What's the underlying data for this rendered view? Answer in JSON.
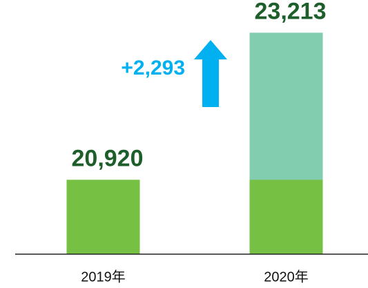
{
  "chart_data": {
    "type": "bar",
    "categories": [
      "2019年",
      "2020年"
    ],
    "values": [
      20920,
      23213
    ],
    "value_labels": [
      "20,920",
      "23,213"
    ],
    "color": "#76c043",
    "increase_color": "#82cdb0",
    "annotation": "+2,293",
    "ylim": [
      19760,
      23400
    ]
  }
}
